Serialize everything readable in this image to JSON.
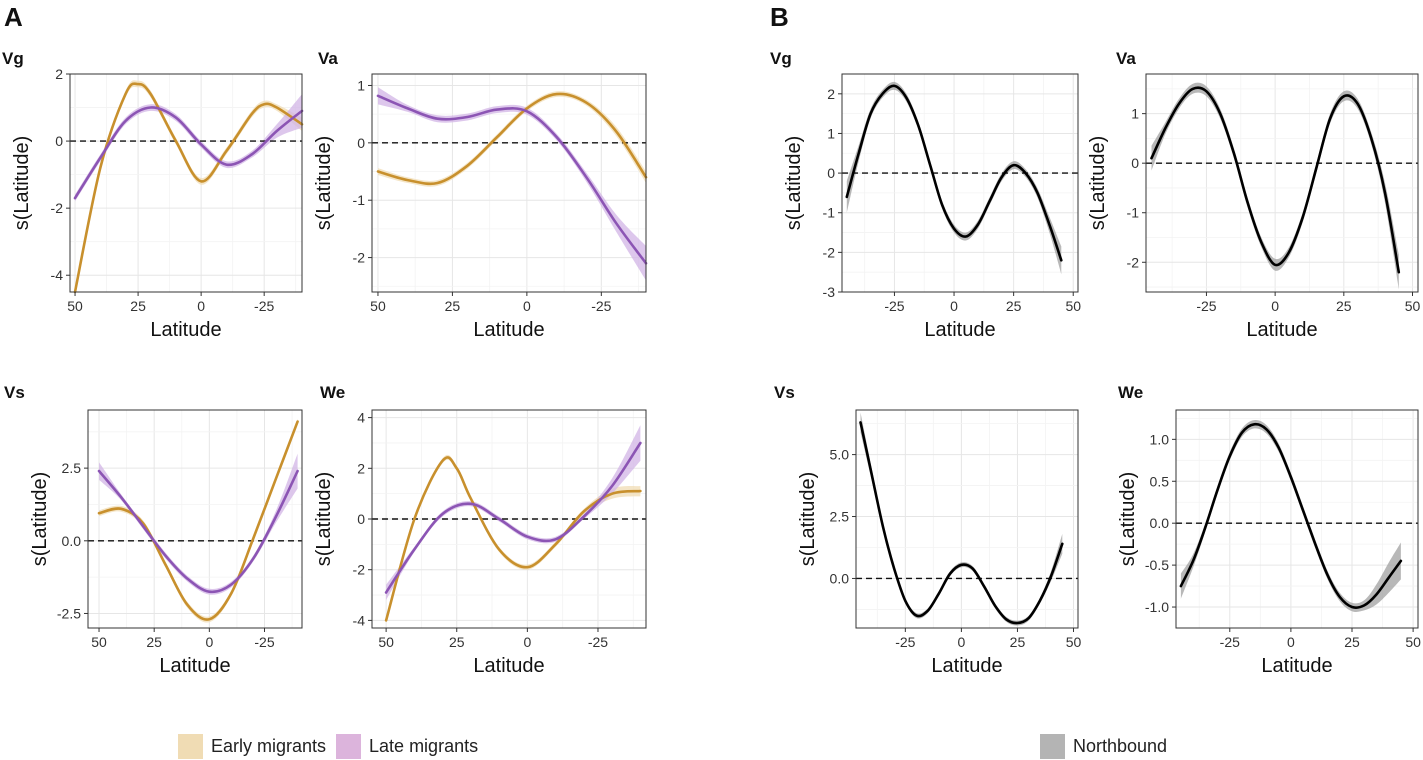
{
  "panel_labels": {
    "a": "A",
    "b": "B"
  },
  "legend_a": [
    {
      "label": "Early migrants",
      "color": "#f0dcb4"
    },
    {
      "label": "Late migrants",
      "color": "#dcb4dc"
    }
  ],
  "legend_b": [
    {
      "label": "Northbound",
      "color": "#b4b4b4"
    }
  ],
  "colors": {
    "early": "#c8902d",
    "late": "#8c55b4",
    "north": "#000000",
    "early_band": "#f0dcb4",
    "late_band": "#d2b4e6",
    "north_band": "#a0a0a0"
  },
  "chart_data": [
    {
      "id": "a-vg",
      "panel": "A",
      "title": "Vg",
      "type": "line",
      "xlabel": "Latitude",
      "ylabel": "s(Latitude)",
      "xlim": [
        52,
        -40
      ],
      "x_reversed": true,
      "ylim": [
        -4.5,
        2
      ],
      "xticks": [
        50,
        25,
        0,
        -25
      ],
      "xtick_labels": [
        "50",
        "25",
        "0",
        "-25"
      ],
      "yticks": [
        -4,
        -2,
        0,
        2
      ],
      "ytick_labels": [
        "-4",
        "-2",
        "0",
        "2"
      ],
      "series": [
        {
          "name": "Early migrants",
          "color_key": "early",
          "x": [
            50,
            40,
            30,
            25,
            20,
            10,
            0,
            -10,
            -20,
            -25,
            -30,
            -40
          ],
          "y": [
            -4.5,
            -0.8,
            1.4,
            1.7,
            1.4,
            0.0,
            -1.2,
            -0.3,
            0.8,
            1.1,
            1.0,
            0.5
          ],
          "band": [
            0.1,
            0.1,
            0.1,
            0.1,
            0.1,
            0.1,
            0.1,
            0.1,
            0.1,
            0.1,
            0.1,
            0.2
          ]
        },
        {
          "name": "Late migrants",
          "color_key": "late",
          "x": [
            50,
            40,
            30,
            20,
            10,
            0,
            -10,
            -20,
            -30,
            -40
          ],
          "y": [
            -1.7,
            -0.5,
            0.6,
            1.0,
            0.7,
            -0.1,
            -0.7,
            -0.4,
            0.3,
            0.9
          ],
          "band": [
            0.1,
            0.1,
            0.1,
            0.1,
            0.1,
            0.1,
            0.1,
            0.1,
            0.2,
            0.5
          ]
        }
      ]
    },
    {
      "id": "a-va",
      "panel": "A",
      "title": "Va",
      "type": "line",
      "xlabel": "Latitude",
      "ylabel": "s(Latitude)",
      "xlim": [
        52,
        -40
      ],
      "x_reversed": true,
      "ylim": [
        -2.6,
        1.2
      ],
      "xticks": [
        50,
        25,
        0,
        -25
      ],
      "xtick_labels": [
        "50",
        "25",
        "0",
        "-25"
      ],
      "yticks": [
        -2,
        -1,
        0,
        1
      ],
      "ytick_labels": [
        "-2",
        "-1",
        "0",
        "1"
      ],
      "series": [
        {
          "name": "Early migrants",
          "color_key": "early",
          "x": [
            50,
            40,
            30,
            20,
            10,
            0,
            -10,
            -20,
            -30,
            -40
          ],
          "y": [
            -0.5,
            -0.65,
            -0.7,
            -0.4,
            0.1,
            0.6,
            0.85,
            0.7,
            0.2,
            -0.6
          ],
          "band": [
            0.06,
            0.05,
            0.05,
            0.05,
            0.05,
            0.05,
            0.05,
            0.05,
            0.08,
            0.1
          ]
        },
        {
          "name": "Late migrants",
          "color_key": "late",
          "x": [
            50,
            40,
            30,
            20,
            10,
            0,
            -10,
            -20,
            -30,
            -40
          ],
          "y": [
            0.82,
            0.6,
            0.42,
            0.45,
            0.58,
            0.55,
            0.1,
            -0.6,
            -1.4,
            -2.1
          ],
          "band": [
            0.15,
            0.06,
            0.06,
            0.06,
            0.06,
            0.06,
            0.06,
            0.08,
            0.15,
            0.3
          ]
        }
      ]
    },
    {
      "id": "a-vs",
      "panel": "A",
      "title": "Vs",
      "type": "line",
      "xlabel": "Latitude",
      "ylabel": "s(Latitude)",
      "xlim": [
        55,
        -42
      ],
      "x_reversed": true,
      "ylim": [
        -3.0,
        4.5
      ],
      "xticks": [
        50,
        25,
        0,
        -25
      ],
      "xtick_labels": [
        "50",
        "25",
        "0",
        "-25"
      ],
      "yticks": [
        -2.5,
        0,
        2.5
      ],
      "ytick_labels": [
        "-2.5",
        "0.0",
        "2.5"
      ],
      "series": [
        {
          "name": "Early migrants",
          "color_key": "early",
          "x": [
            50,
            40,
            30,
            20,
            10,
            0,
            -10,
            -20,
            -30,
            -40
          ],
          "y": [
            0.95,
            1.1,
            0.6,
            -0.8,
            -2.2,
            -2.7,
            -1.8,
            0.1,
            2.1,
            4.1
          ],
          "band": [
            0.1,
            0.1,
            0.1,
            0.1,
            0.1,
            0.1,
            0.1,
            0.1,
            0.1,
            0.1
          ]
        },
        {
          "name": "Late migrants",
          "color_key": "late",
          "x": [
            50,
            40,
            30,
            20,
            10,
            0,
            -10,
            -20,
            -30,
            -40
          ],
          "y": [
            2.4,
            1.5,
            0.5,
            -0.5,
            -1.3,
            -1.75,
            -1.5,
            -0.6,
            0.8,
            2.4
          ],
          "band": [
            0.3,
            0.1,
            0.1,
            0.1,
            0.1,
            0.1,
            0.1,
            0.1,
            0.2,
            0.6
          ]
        }
      ]
    },
    {
      "id": "a-we",
      "panel": "A",
      "title": "We",
      "type": "line",
      "xlabel": "Latitude",
      "ylabel": "s(Latitude)",
      "xlim": [
        55,
        -42
      ],
      "x_reversed": true,
      "ylim": [
        -4.3,
        4.3
      ],
      "xticks": [
        50,
        25,
        0,
        -25
      ],
      "xtick_labels": [
        "50",
        "25",
        "0",
        "-25"
      ],
      "yticks": [
        -4,
        -2,
        0,
        2,
        4
      ],
      "ytick_labels": [
        "-4",
        "-2",
        "0",
        "2",
        "4"
      ],
      "series": [
        {
          "name": "Early migrants",
          "color_key": "early",
          "x": [
            50,
            40,
            30,
            25,
            20,
            10,
            0,
            -10,
            -20,
            -30,
            -40
          ],
          "y": [
            -4.0,
            0.0,
            2.3,
            2.0,
            0.8,
            -1.2,
            -1.9,
            -1.0,
            0.3,
            1.0,
            1.1
          ],
          "band": [
            0.1,
            0.1,
            0.1,
            0.1,
            0.1,
            0.1,
            0.1,
            0.1,
            0.1,
            0.2,
            0.2
          ]
        },
        {
          "name": "Late migrants",
          "color_key": "late",
          "x": [
            50,
            40,
            30,
            20,
            10,
            0,
            -10,
            -20,
            -30,
            -40
          ],
          "y": [
            -2.9,
            -1.2,
            0.2,
            0.6,
            0.0,
            -0.7,
            -0.8,
            0.1,
            1.3,
            3.0
          ],
          "band": [
            0.3,
            0.1,
            0.1,
            0.1,
            0.1,
            0.1,
            0.1,
            0.1,
            0.3,
            0.7
          ]
        }
      ]
    },
    {
      "id": "b-vg",
      "panel": "B",
      "title": "Vg",
      "type": "line",
      "xlabel": "Latitude",
      "ylabel": "s(Latitude)",
      "xlim": [
        -47,
        52
      ],
      "x_reversed": false,
      "ylim": [
        -3,
        2.5
      ],
      "xticks": [
        -25,
        0,
        25,
        50
      ],
      "xtick_labels": [
        "-25",
        "0",
        "25",
        "50"
      ],
      "yticks": [
        -3,
        -2,
        -1,
        0,
        1,
        2
      ],
      "ytick_labels": [
        "-3",
        "-2",
        "-1",
        "0",
        "1",
        "2"
      ],
      "series": [
        {
          "name": "Northbound",
          "color_key": "north",
          "x": [
            -45,
            -40,
            -35,
            -30,
            -25,
            -20,
            -15,
            -10,
            -5,
            0,
            5,
            10,
            15,
            20,
            25,
            30,
            35,
            40,
            45
          ],
          "y": [
            -0.6,
            0.5,
            1.5,
            2.0,
            2.2,
            1.9,
            1.2,
            0.2,
            -0.8,
            -1.4,
            -1.6,
            -1.3,
            -0.7,
            -0.1,
            0.2,
            0.0,
            -0.5,
            -1.3,
            -2.2
          ],
          "band": [
            0.4,
            0.2,
            0.12,
            0.1,
            0.1,
            0.1,
            0.1,
            0.1,
            0.1,
            0.1,
            0.1,
            0.1,
            0.1,
            0.1,
            0.1,
            0.1,
            0.12,
            0.2,
            0.35
          ]
        }
      ]
    },
    {
      "id": "b-va",
      "panel": "B",
      "title": "Va",
      "type": "line",
      "xlabel": "Latitude",
      "ylabel": "s(Latitude)",
      "xlim": [
        -47,
        52
      ],
      "x_reversed": false,
      "ylim": [
        -2.6,
        1.8
      ],
      "xticks": [
        -25,
        0,
        25,
        50
      ],
      "xtick_labels": [
        "-25",
        "0",
        "25",
        "50"
      ],
      "yticks": [
        -2,
        -1,
        0,
        1
      ],
      "ytick_labels": [
        "-2",
        "-1",
        "0",
        "1"
      ],
      "series": [
        {
          "name": "Northbound",
          "color_key": "north",
          "x": [
            -45,
            -40,
            -35,
            -30,
            -25,
            -20,
            -15,
            -10,
            -5,
            0,
            5,
            10,
            15,
            20,
            25,
            30,
            35,
            40,
            45
          ],
          "y": [
            0.1,
            0.7,
            1.2,
            1.5,
            1.45,
            1.0,
            0.2,
            -0.8,
            -1.6,
            -2.05,
            -1.8,
            -1.1,
            -0.1,
            0.9,
            1.35,
            1.2,
            0.5,
            -0.6,
            -2.2
          ],
          "band": [
            0.25,
            0.12,
            0.1,
            0.1,
            0.1,
            0.1,
            0.1,
            0.1,
            0.1,
            0.12,
            0.1,
            0.1,
            0.1,
            0.1,
            0.1,
            0.1,
            0.12,
            0.2,
            0.35
          ]
        }
      ]
    },
    {
      "id": "b-vs",
      "panel": "B",
      "title": "Vs",
      "type": "line",
      "xlabel": "Latitude",
      "ylabel": "s(Latitude)",
      "xlim": [
        -47,
        52
      ],
      "x_reversed": false,
      "ylim": [
        -2.0,
        6.8
      ],
      "xticks": [
        -25,
        0,
        25,
        50
      ],
      "xtick_labels": [
        "-25",
        "0",
        "25",
        "50"
      ],
      "yticks": [
        0,
        2.5,
        5
      ],
      "ytick_labels": [
        "0.0",
        "2.5",
        "5.0"
      ],
      "series": [
        {
          "name": "Northbound",
          "color_key": "north",
          "x": [
            -45,
            -40,
            -35,
            -30,
            -25,
            -20,
            -15,
            -10,
            -5,
            0,
            5,
            10,
            15,
            20,
            25,
            30,
            35,
            40,
            45
          ],
          "y": [
            6.3,
            4.2,
            2.1,
            0.4,
            -0.9,
            -1.5,
            -1.3,
            -0.6,
            0.2,
            0.55,
            0.4,
            -0.3,
            -1.1,
            -1.65,
            -1.8,
            -1.6,
            -0.9,
            0.1,
            1.4
          ],
          "band": [
            0.4,
            0.25,
            0.15,
            0.1,
            0.1,
            0.1,
            0.1,
            0.1,
            0.1,
            0.1,
            0.1,
            0.1,
            0.1,
            0.1,
            0.1,
            0.1,
            0.12,
            0.2,
            0.4
          ]
        }
      ]
    },
    {
      "id": "b-we",
      "panel": "B",
      "title": "We",
      "type": "line",
      "xlabel": "Latitude",
      "ylabel": "s(Latitude)",
      "xlim": [
        -47,
        52
      ],
      "x_reversed": false,
      "ylim": [
        -1.25,
        1.35
      ],
      "xticks": [
        -25,
        0,
        25,
        50
      ],
      "xtick_labels": [
        "-25",
        "0",
        "25",
        "50"
      ],
      "yticks": [
        -1,
        -0.5,
        0,
        0.5,
        1
      ],
      "ytick_labels": [
        "-1.0",
        "-0.5",
        "0.0",
        "0.5",
        "1.0"
      ],
      "series": [
        {
          "name": "Northbound",
          "color_key": "north",
          "x": [
            -45,
            -40,
            -35,
            -30,
            -25,
            -20,
            -15,
            -10,
            -5,
            0,
            5,
            10,
            15,
            20,
            25,
            30,
            35,
            40,
            45
          ],
          "y": [
            -0.75,
            -0.45,
            -0.05,
            0.4,
            0.8,
            1.08,
            1.18,
            1.12,
            0.9,
            0.55,
            0.15,
            -0.25,
            -0.62,
            -0.88,
            -1.0,
            -0.98,
            -0.85,
            -0.65,
            -0.45
          ],
          "band": [
            0.15,
            0.08,
            0.05,
            0.05,
            0.05,
            0.05,
            0.05,
            0.05,
            0.05,
            0.05,
            0.05,
            0.05,
            0.05,
            0.05,
            0.05,
            0.06,
            0.12,
            0.18,
            0.22
          ]
        }
      ]
    }
  ]
}
